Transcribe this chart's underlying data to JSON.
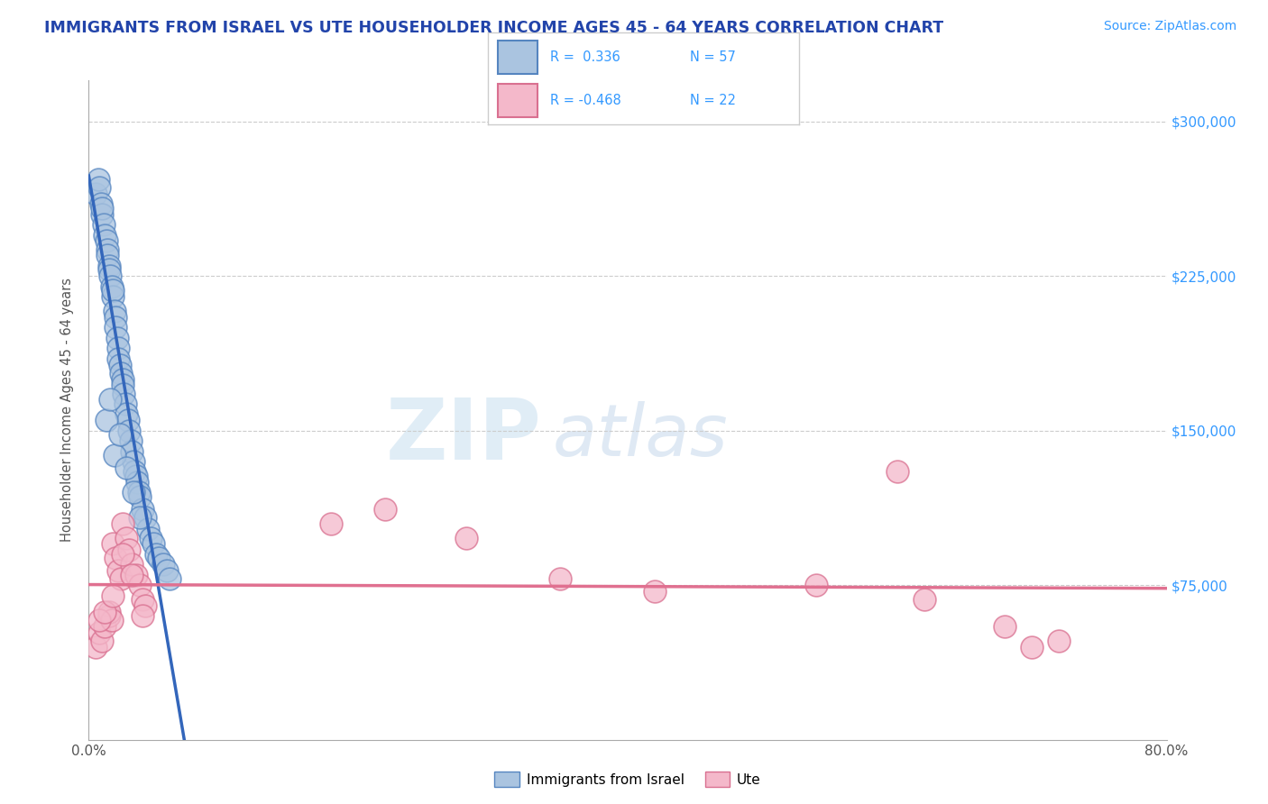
{
  "title": "IMMIGRANTS FROM ISRAEL VS UTE HOUSEHOLDER INCOME AGES 45 - 64 YEARS CORRELATION CHART",
  "source": "Source: ZipAtlas.com",
  "ylabel": "Householder Income Ages 45 - 64 years",
  "xlim": [
    0.0,
    0.8
  ],
  "ylim": [
    0,
    320000
  ],
  "xticks": [
    0.0,
    0.1,
    0.2,
    0.3,
    0.4,
    0.5,
    0.6,
    0.7,
    0.8
  ],
  "ytick_positions": [
    75000,
    150000,
    225000,
    300000
  ],
  "ytick_labels": [
    "$75,000",
    "$150,000",
    "$225,000",
    "$300,000"
  ],
  "blue_color": "#aac4e0",
  "blue_edge_color": "#5585c0",
  "blue_line_color": "#3366bb",
  "pink_color": "#f4b8ca",
  "pink_edge_color": "#d97090",
  "pink_line_color": "#e07090",
  "watermark_zip": "ZIP",
  "watermark_atlas": "atlas",
  "blue_r": "0.336",
  "blue_n": "57",
  "pink_r": "-0.468",
  "pink_n": "22",
  "blue_scatter_x": [
    0.008,
    0.01,
    0.012,
    0.013,
    0.015,
    0.015,
    0.017,
    0.018,
    0.018,
    0.02,
    0.02,
    0.021,
    0.022,
    0.022,
    0.023,
    0.024,
    0.025,
    0.025,
    0.026,
    0.027,
    0.028,
    0.028,
    0.029,
    0.03,
    0.03,
    0.031,
    0.032,
    0.033,
    0.033,
    0.034,
    0.035,
    0.036,
    0.037,
    0.038,
    0.039,
    0.04,
    0.041,
    0.042,
    0.043,
    0.044,
    0.045,
    0.046,
    0.047,
    0.048,
    0.049,
    0.05,
    0.051,
    0.052,
    0.055,
    0.058,
    0.06,
    0.063,
    0.065,
    0.068,
    0.07,
    0.072,
    0.075
  ],
  "blue_scatter_y": [
    270000,
    265000,
    268000,
    260000,
    255000,
    260000,
    250000,
    248000,
    245000,
    242000,
    238000,
    235000,
    228000,
    222000,
    220000,
    215000,
    210000,
    205000,
    200000,
    195000,
    190000,
    185000,
    180000,
    175000,
    178000,
    170000,
    165000,
    160000,
    162000,
    155000,
    150000,
    148000,
    145000,
    140000,
    138000,
    135000,
    130000,
    128000,
    125000,
    120000,
    118000,
    115000,
    112000,
    110000,
    108000,
    105000,
    102000,
    100000,
    98000,
    95000,
    92000,
    88000,
    85000,
    82000,
    80000,
    78000,
    75000
  ],
  "pink_scatter_x": [
    0.005,
    0.008,
    0.01,
    0.012,
    0.015,
    0.017,
    0.018,
    0.02,
    0.022,
    0.024,
    0.025,
    0.026,
    0.028,
    0.03,
    0.032,
    0.035,
    0.038,
    0.04,
    0.042,
    0.045,
    0.6,
    0.7
  ],
  "pink_scatter_y": [
    58000,
    52000,
    48000,
    55000,
    62000,
    58000,
    95000,
    88000,
    82000,
    78000,
    105000,
    112000,
    98000,
    92000,
    85000,
    80000,
    75000,
    68000,
    65000,
    60000,
    130000,
    45000
  ],
  "pink_scatter_x2": [
    0.008,
    0.01,
    0.013,
    0.018,
    0.022,
    0.04,
    0.18,
    0.22,
    0.28,
    0.55,
    0.62,
    0.7
  ],
  "pink_scatter_y2": [
    45000,
    48000,
    52000,
    62000,
    58000,
    55000,
    105000,
    112000,
    98000,
    75000,
    130000,
    45000
  ]
}
